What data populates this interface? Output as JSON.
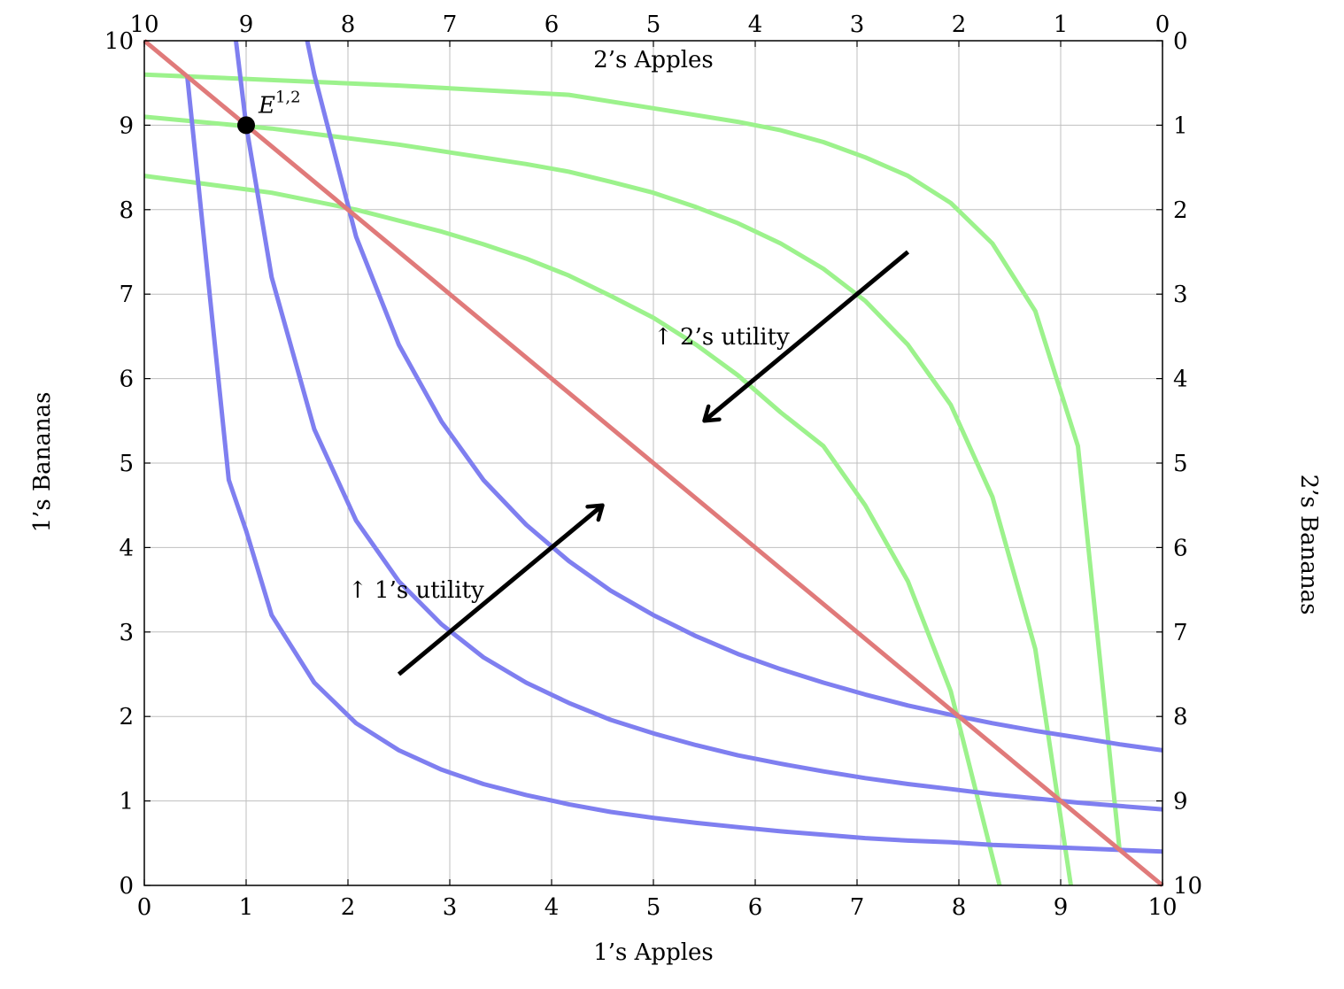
{
  "chart_data": {
    "type": "line",
    "title": "",
    "subtitle": "",
    "xlabel_bottom": "1’s Apples",
    "xlabel_top": "2’s Apples",
    "ylabel_left": "1’s Bananas",
    "ylabel_right": "2’s Bananas",
    "xlim": [
      0,
      10
    ],
    "ylim": [
      0,
      10
    ],
    "grid": true,
    "ticks_bottom": [
      "0",
      "1",
      "2",
      "3",
      "4",
      "5",
      "6",
      "7",
      "8",
      "9",
      "10"
    ],
    "ticks_left": [
      "0",
      "1",
      "2",
      "3",
      "4",
      "5",
      "6",
      "7",
      "8",
      "9",
      "10"
    ],
    "ticks_top": [
      "10",
      "9",
      "8",
      "7",
      "6",
      "5",
      "4",
      "3",
      "2",
      "1",
      "0"
    ],
    "ticks_right": [
      "0",
      "1",
      "2",
      "3",
      "4",
      "5",
      "6",
      "7",
      "8",
      "9",
      "10"
    ],
    "colors": {
      "person1": "#7f7ff0",
      "person2": "#9cf28c",
      "contract_curve": "#e07a7a",
      "arrow": "#000000",
      "point": "#000000",
      "grid": "#bfbfbf"
    },
    "series": [
      {
        "group": "person1",
        "values": [
          [
            0.42,
            9.6
          ],
          [
            0.83,
            4.8
          ],
          [
            1.0,
            4.2
          ],
          [
            1.25,
            3.2
          ],
          [
            1.67,
            2.4
          ],
          [
            2.08,
            1.92
          ],
          [
            2.5,
            1.6
          ],
          [
            2.92,
            1.37
          ],
          [
            3.33,
            1.2
          ],
          [
            3.75,
            1.07
          ],
          [
            4.17,
            0.96
          ],
          [
            4.58,
            0.87
          ],
          [
            5.0,
            0.8
          ],
          [
            5.42,
            0.74
          ],
          [
            5.83,
            0.69
          ],
          [
            6.25,
            0.64
          ],
          [
            6.67,
            0.6
          ],
          [
            7.08,
            0.56
          ],
          [
            7.5,
            0.53
          ],
          [
            7.92,
            0.51
          ],
          [
            8.33,
            0.48
          ],
          [
            8.75,
            0.46
          ],
          [
            9.17,
            0.44
          ],
          [
            9.58,
            0.42
          ],
          [
            10.0,
            0.4
          ]
        ]
      },
      {
        "group": "person1",
        "values": [
          [
            0.9,
            10.0
          ],
          [
            1.0,
            9.0
          ],
          [
            1.25,
            7.2
          ],
          [
            1.67,
            5.4
          ],
          [
            2.08,
            4.32
          ],
          [
            2.5,
            3.6
          ],
          [
            2.92,
            3.09
          ],
          [
            3.33,
            2.7
          ],
          [
            3.75,
            2.4
          ],
          [
            4.17,
            2.16
          ],
          [
            4.58,
            1.96
          ],
          [
            5.0,
            1.8
          ],
          [
            5.42,
            1.66
          ],
          [
            5.83,
            1.54
          ],
          [
            6.25,
            1.44
          ],
          [
            6.67,
            1.35
          ],
          [
            7.08,
            1.27
          ],
          [
            7.5,
            1.2
          ],
          [
            7.92,
            1.14
          ],
          [
            8.33,
            1.08
          ],
          [
            8.75,
            1.03
          ],
          [
            9.17,
            0.98
          ],
          [
            9.58,
            0.94
          ],
          [
            10.0,
            0.9
          ]
        ]
      },
      {
        "group": "person1",
        "values": [
          [
            1.6,
            10.0
          ],
          [
            1.67,
            9.6
          ],
          [
            2.08,
            7.68
          ],
          [
            2.5,
            6.4
          ],
          [
            2.92,
            5.49
          ],
          [
            3.33,
            4.8
          ],
          [
            3.75,
            4.27
          ],
          [
            4.17,
            3.84
          ],
          [
            4.58,
            3.49
          ],
          [
            5.0,
            3.2
          ],
          [
            5.42,
            2.95
          ],
          [
            5.83,
            2.74
          ],
          [
            6.25,
            2.56
          ],
          [
            6.67,
            2.4
          ],
          [
            7.08,
            2.26
          ],
          [
            7.5,
            2.13
          ],
          [
            7.92,
            2.02
          ],
          [
            8.33,
            1.92
          ],
          [
            8.75,
            1.83
          ],
          [
            9.17,
            1.75
          ],
          [
            9.58,
            1.67
          ],
          [
            10.0,
            1.6
          ]
        ]
      },
      {
        "group": "person2",
        "values": [
          [
            0.0,
            9.6
          ],
          [
            2.5,
            9.47
          ],
          [
            4.17,
            9.36
          ],
          [
            5.0,
            9.2
          ],
          [
            5.83,
            9.04
          ],
          [
            6.25,
            8.94
          ],
          [
            6.67,
            8.8
          ],
          [
            7.08,
            8.62
          ],
          [
            7.5,
            8.4
          ],
          [
            7.92,
            8.08
          ],
          [
            8.33,
            7.6
          ],
          [
            8.75,
            6.8
          ],
          [
            9.17,
            5.2
          ],
          [
            9.58,
            0.4
          ]
        ]
      },
      {
        "group": "person2",
        "values": [
          [
            0.0,
            9.1
          ],
          [
            1.25,
            8.96
          ],
          [
            2.5,
            8.77
          ],
          [
            3.75,
            8.54
          ],
          [
            4.17,
            8.45
          ],
          [
            4.58,
            8.33
          ],
          [
            5.0,
            8.2
          ],
          [
            5.42,
            8.03
          ],
          [
            5.83,
            7.84
          ],
          [
            6.25,
            7.6
          ],
          [
            6.67,
            7.3
          ],
          [
            7.08,
            6.92
          ],
          [
            7.5,
            6.4
          ],
          [
            7.92,
            5.69
          ],
          [
            8.33,
            4.6
          ],
          [
            8.75,
            2.8
          ],
          [
            9.1,
            0.0
          ]
        ]
      },
      {
        "group": "person2",
        "values": [
          [
            0.0,
            8.4
          ],
          [
            1.25,
            8.2
          ],
          [
            2.08,
            8.0
          ],
          [
            2.92,
            7.74
          ],
          [
            3.33,
            7.59
          ],
          [
            3.75,
            7.42
          ],
          [
            4.17,
            7.22
          ],
          [
            4.58,
            6.98
          ],
          [
            5.0,
            6.72
          ],
          [
            5.42,
            6.4
          ],
          [
            5.83,
            6.04
          ],
          [
            6.25,
            5.6
          ],
          [
            6.67,
            5.2
          ],
          [
            7.08,
            4.5
          ],
          [
            7.5,
            3.6
          ],
          [
            7.92,
            2.3
          ],
          [
            8.4,
            0.0
          ]
        ]
      },
      {
        "group": "contract_curve",
        "values": [
          [
            0,
            10
          ],
          [
            10,
            0
          ]
        ]
      }
    ],
    "point": {
      "label_base": "E",
      "label_sup": "1,2",
      "x": 1,
      "y": 9
    },
    "annotations": [
      {
        "text": "↑ 1’s utility",
        "x": 2.0,
        "y": 3.5
      },
      {
        "text": "↑ 2’s utility",
        "x": 5.0,
        "y": 6.5
      }
    ],
    "arrows": [
      {
        "from": [
          2.5,
          2.5
        ],
        "to": [
          4.5,
          4.5
        ]
      },
      {
        "from": [
          7.5,
          7.5
        ],
        "to": [
          5.5,
          5.5
        ]
      }
    ]
  }
}
